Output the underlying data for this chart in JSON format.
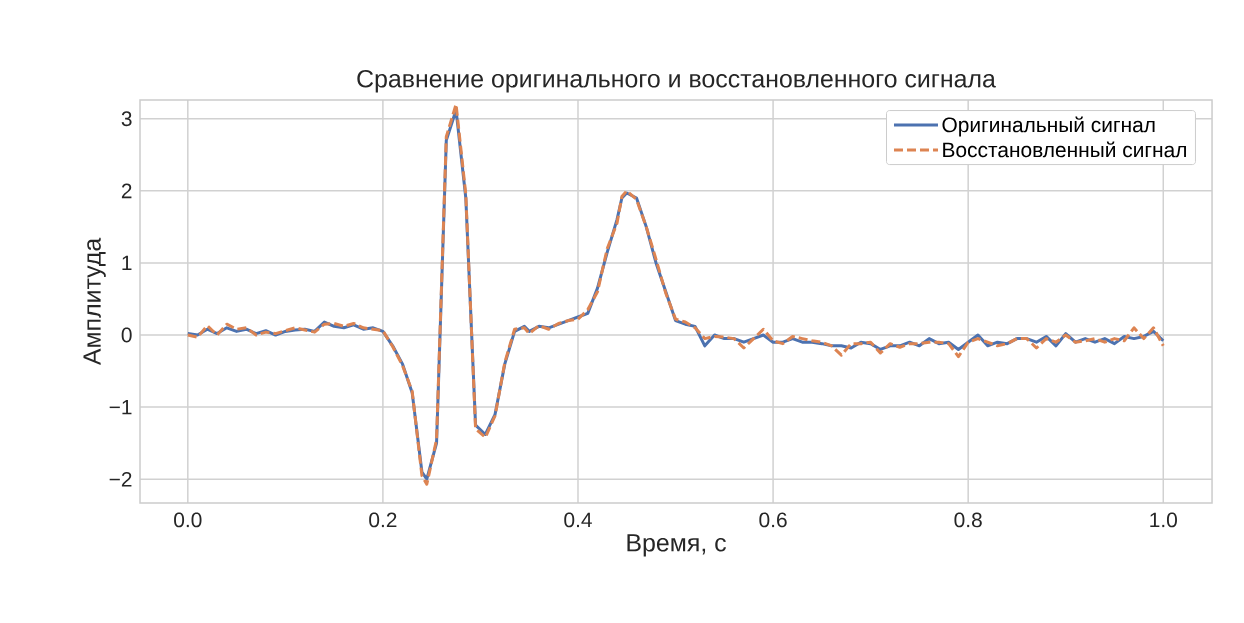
{
  "chart_data": {
    "type": "line",
    "title": "Сравнение оригинального и восстановленного сигнала",
    "xlabel": "Время, с",
    "ylabel": "Амплитуда",
    "x": [
      0,
      0.01,
      0.02,
      0.03,
      0.04,
      0.05,
      0.06,
      0.07,
      0.08,
      0.09,
      0.1,
      0.11,
      0.12,
      0.13,
      0.14,
      0.15,
      0.16,
      0.17,
      0.18,
      0.19,
      0.2,
      0.21,
      0.22,
      0.23,
      0.24,
      0.245,
      0.255,
      0.265,
      0.275,
      0.285,
      0.295,
      0.305,
      0.315,
      0.325,
      0.335,
      0.345,
      0.35,
      0.36,
      0.37,
      0.38,
      0.39,
      0.4,
      0.41,
      0.42,
      0.43,
      0.44,
      0.445,
      0.45,
      0.46,
      0.47,
      0.48,
      0.49,
      0.5,
      0.51,
      0.52,
      0.53,
      0.54,
      0.55,
      0.56,
      0.57,
      0.58,
      0.59,
      0.6,
      0.61,
      0.62,
      0.63,
      0.64,
      0.65,
      0.66,
      0.67,
      0.68,
      0.69,
      0.7,
      0.71,
      0.72,
      0.73,
      0.74,
      0.75,
      0.76,
      0.77,
      0.78,
      0.79,
      0.8,
      0.81,
      0.82,
      0.83,
      0.84,
      0.85,
      0.86,
      0.87,
      0.88,
      0.89,
      0.9,
      0.91,
      0.92,
      0.93,
      0.94,
      0.95,
      0.96,
      0.97,
      0.98,
      0.99,
      1.0
    ],
    "series": [
      {
        "name": "Оригинальный сигнал",
        "color": "#4c72b0",
        "line_style": "solid",
        "values": [
          0.02,
          0,
          0.08,
          0.02,
          0.1,
          0.05,
          0.08,
          0.02,
          0.06,
          0.0,
          0.05,
          0.07,
          0.08,
          0.05,
          0.18,
          0.12,
          0.1,
          0.14,
          0.08,
          0.1,
          0.05,
          -0.15,
          -0.4,
          -0.8,
          -1.9,
          -2.0,
          -1.5,
          2.7,
          3.12,
          1.9,
          -1.25,
          -1.38,
          -1.1,
          -0.4,
          0.05,
          0.12,
          0.05,
          0.12,
          0.1,
          0.15,
          0.2,
          0.25,
          0.3,
          0.65,
          1.15,
          1.6,
          1.9,
          1.97,
          1.9,
          1.5,
          1.0,
          0.6,
          0.2,
          0.15,
          0.12,
          -0.15,
          0.0,
          -0.05,
          -0.05,
          -0.1,
          -0.05,
          0.0,
          -0.1,
          -0.1,
          -0.05,
          -0.1,
          -0.1,
          -0.12,
          -0.15,
          -0.15,
          -0.18,
          -0.1,
          -0.12,
          -0.2,
          -0.15,
          -0.15,
          -0.1,
          -0.15,
          -0.05,
          -0.12,
          -0.1,
          -0.2,
          -0.1,
          0.0,
          -0.15,
          -0.1,
          -0.12,
          -0.05,
          -0.05,
          -0.1,
          -0.02,
          -0.15,
          0.02,
          -0.1,
          -0.05,
          -0.1,
          -0.05,
          -0.12,
          -0.02,
          -0.05,
          -0.02,
          0.05,
          -0.08
        ]
      },
      {
        "name": "Восстановленный сигнал",
        "color": "#dd8452",
        "line_style": "dashed",
        "values": [
          0.0,
          -0.03,
          0.13,
          0.0,
          0.15,
          0.08,
          0.1,
          0.0,
          0.04,
          0.02,
          0.06,
          0.1,
          0.07,
          0.04,
          0.15,
          0.16,
          0.12,
          0.16,
          0.1,
          0.08,
          0.06,
          -0.16,
          -0.42,
          -0.78,
          -1.95,
          -2.07,
          -1.45,
          2.75,
          3.2,
          1.95,
          -1.3,
          -1.42,
          -1.12,
          -0.38,
          0.08,
          0.1,
          0.02,
          0.13,
          0.08,
          0.16,
          0.2,
          0.22,
          0.35,
          0.6,
          1.2,
          1.55,
          1.92,
          2.0,
          1.88,
          1.5,
          1.05,
          0.58,
          0.22,
          0.18,
          0.1,
          -0.05,
          -0.02,
          -0.03,
          -0.05,
          -0.18,
          -0.05,
          0.08,
          -0.08,
          -0.12,
          -0.02,
          -0.05,
          -0.08,
          -0.1,
          -0.15,
          -0.28,
          -0.12,
          -0.12,
          -0.1,
          -0.25,
          -0.12,
          -0.17,
          -0.12,
          -0.12,
          -0.1,
          -0.1,
          -0.12,
          -0.3,
          -0.1,
          -0.05,
          -0.1,
          -0.15,
          -0.12,
          -0.05,
          -0.05,
          -0.18,
          -0.05,
          -0.1,
          0.0,
          -0.1,
          -0.08,
          -0.05,
          -0.1,
          -0.05,
          -0.08,
          0.1,
          -0.05,
          0.1,
          -0.15
        ]
      }
    ],
    "xlim": [
      -0.049,
      1.05
    ],
    "ylim": [
      -2.33,
      3.26
    ],
    "xticks": [
      {
        "value": 0,
        "label": "0.0"
      },
      {
        "value": 0.2,
        "label": "0.2"
      },
      {
        "value": 0.4,
        "label": "0.4"
      },
      {
        "value": 0.6,
        "label": "0.6"
      },
      {
        "value": 0.8,
        "label": "0.8"
      },
      {
        "value": 1.0,
        "label": "1.0"
      }
    ],
    "yticks": [
      {
        "value": -2,
        "label": "−2"
      },
      {
        "value": -1,
        "label": "−1"
      },
      0,
      1,
      2,
      3
    ],
    "grid": true,
    "legend": "top right"
  }
}
